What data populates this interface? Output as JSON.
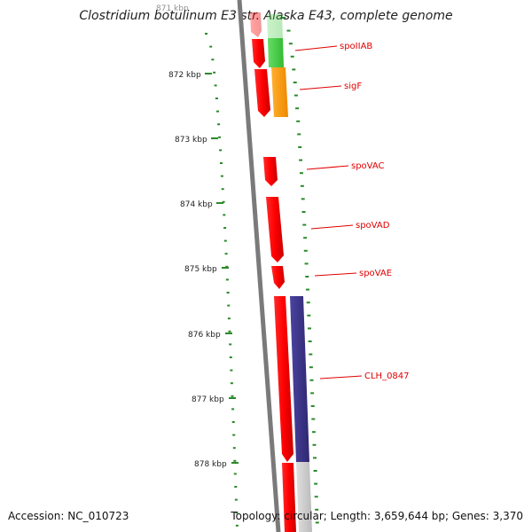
{
  "title": "Clostridium botulinum E3 str. Alaska E43, complete genome",
  "footer": {
    "accession": "Accession: NC_010723",
    "summary": "Topology: circular; Length: 3,659,644 bp; Genes: 3,370"
  },
  "ticks": [
    "871 kbp",
    "872 kbp",
    "873 kbp",
    "874 kbp",
    "875 kbp",
    "876 kbp",
    "877 kbp",
    "878 kbp"
  ],
  "genes": [
    {
      "label": "spoIIAB",
      "strand": "forward",
      "color": "#e00000"
    },
    {
      "label": "sigF",
      "strand": "forward",
      "color": "#e00000"
    },
    {
      "label": "spoVAC",
      "strand": "forward",
      "color": "#e00000"
    },
    {
      "label": "spoVAD",
      "strand": "forward",
      "color": "#e00000"
    },
    {
      "label": "spoVAE",
      "strand": "forward",
      "color": "#e00000"
    },
    {
      "label": "CLH_0847",
      "strand": "forward",
      "color": "#e00000"
    }
  ],
  "colors": {
    "backbone": "#7a7a7a",
    "tick_dots": "#2a8a2a",
    "cog_green": "#44cc44",
    "cog_orange": "#ff9900",
    "cog_purple": "#3d3580",
    "cog_gray": "#cccccc",
    "gene_red": "#e00000"
  }
}
